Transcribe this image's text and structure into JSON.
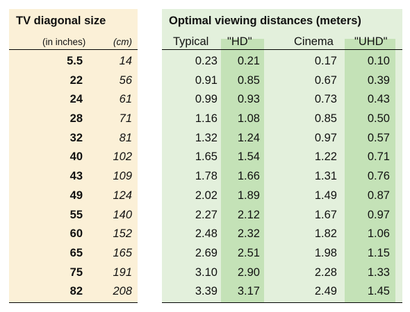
{
  "left": {
    "title": "TV diagonal size",
    "sub_inches": "(in inches)",
    "sub_cm": "(cm)"
  },
  "right": {
    "title": "Optimal viewing distances (meters)",
    "headers": [
      "Typical",
      "\"HD\"",
      "Cinema",
      "\"UHD\""
    ]
  },
  "rows": [
    {
      "inches": "5.5",
      "cm": "14",
      "typical": "0.23",
      "hd": "0.21",
      "cinema": "0.17",
      "uhd": "0.10"
    },
    {
      "inches": "22",
      "cm": "56",
      "typical": "0.91",
      "hd": "0.85",
      "cinema": "0.67",
      "uhd": "0.39"
    },
    {
      "inches": "24",
      "cm": "61",
      "typical": "0.99",
      "hd": "0.93",
      "cinema": "0.73",
      "uhd": "0.43"
    },
    {
      "inches": "28",
      "cm": "71",
      "typical": "1.16",
      "hd": "1.08",
      "cinema": "0.85",
      "uhd": "0.50"
    },
    {
      "inches": "32",
      "cm": "81",
      "typical": "1.32",
      "hd": "1.24",
      "cinema": "0.97",
      "uhd": "0.57"
    },
    {
      "inches": "40",
      "cm": "102",
      "typical": "1.65",
      "hd": "1.54",
      "cinema": "1.22",
      "uhd": "0.71"
    },
    {
      "inches": "43",
      "cm": "109",
      "typical": "1.78",
      "hd": "1.66",
      "cinema": "1.31",
      "uhd": "0.76"
    },
    {
      "inches": "49",
      "cm": "124",
      "typical": "2.02",
      "hd": "1.89",
      "cinema": "1.49",
      "uhd": "0.87"
    },
    {
      "inches": "55",
      "cm": "140",
      "typical": "2.27",
      "hd": "2.12",
      "cinema": "1.67",
      "uhd": "0.97"
    },
    {
      "inches": "60",
      "cm": "152",
      "typical": "2.48",
      "hd": "2.32",
      "cinema": "1.82",
      "uhd": "1.06"
    },
    {
      "inches": "65",
      "cm": "165",
      "typical": "2.69",
      "hd": "2.51",
      "cinema": "1.98",
      "uhd": "1.15"
    },
    {
      "inches": "75",
      "cm": "191",
      "typical": "3.10",
      "hd": "2.90",
      "cinema": "2.28",
      "uhd": "1.33"
    },
    {
      "inches": "82",
      "cm": "208",
      "typical": "3.39",
      "hd": "3.17",
      "cinema": "2.49",
      "uhd": "1.45"
    }
  ],
  "colors": {
    "left_panel": "#fbf0d7",
    "right_panel": "#e3f0dc",
    "highlight_column": "#c4e2b7"
  }
}
